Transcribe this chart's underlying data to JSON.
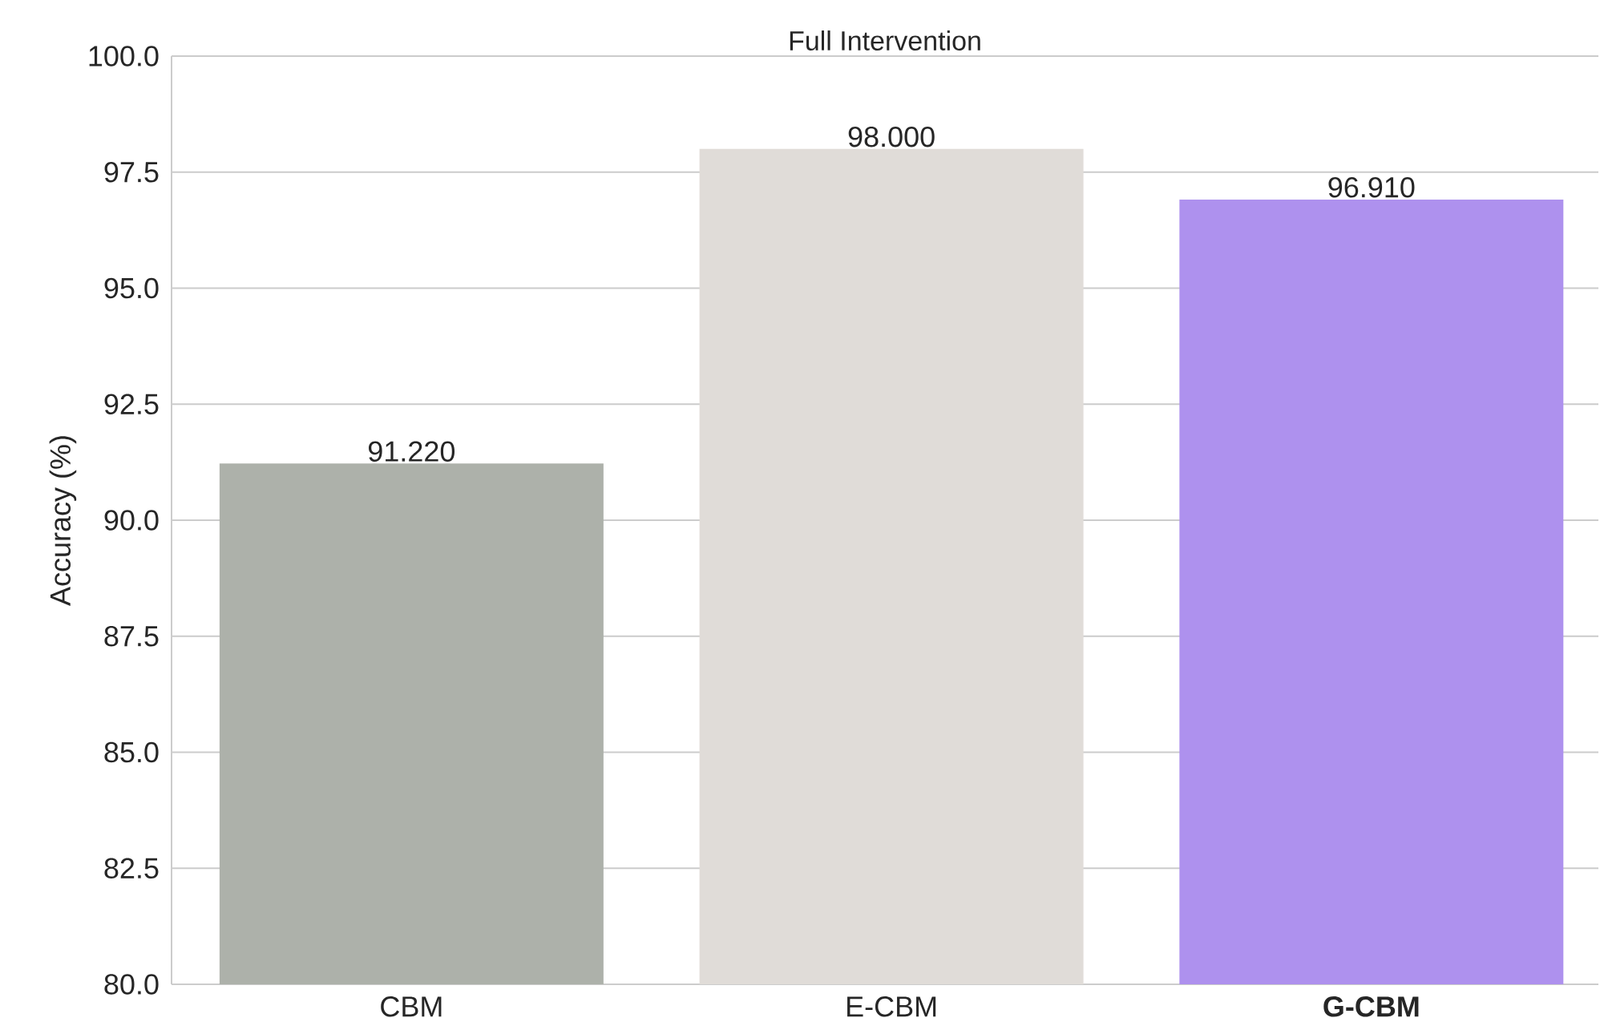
{
  "chart_data": {
    "type": "bar",
    "title": "Full Intervention",
    "ylabel": "Accuracy (%)",
    "categories": [
      "CBM",
      "E-CBM",
      "**G-CBM**"
    ],
    "values": [
      91.22,
      98.0,
      96.91
    ],
    "value_labels": [
      "91.220",
      "98.000",
      "96.910"
    ],
    "colors": [
      "#adb1aa",
      "#e0dcd8",
      "#ae91ee"
    ],
    "ylim": [
      80,
      100
    ],
    "yticks": [
      {
        "value": 80,
        "label": "80.0"
      },
      {
        "value": 82.5,
        "label": "82.5"
      },
      {
        "value": 85,
        "label": "85.0"
      },
      {
        "value": 87.5,
        "label": "87.5"
      },
      {
        "value": 90,
        "label": "90.0"
      },
      {
        "value": 92.5,
        "label": "92.5"
      },
      {
        "value": 95,
        "label": "95.0"
      },
      {
        "value": 97.5,
        "label": "97.5"
      },
      {
        "value": 100,
        "label": "100.0"
      }
    ],
    "grid": "y"
  }
}
